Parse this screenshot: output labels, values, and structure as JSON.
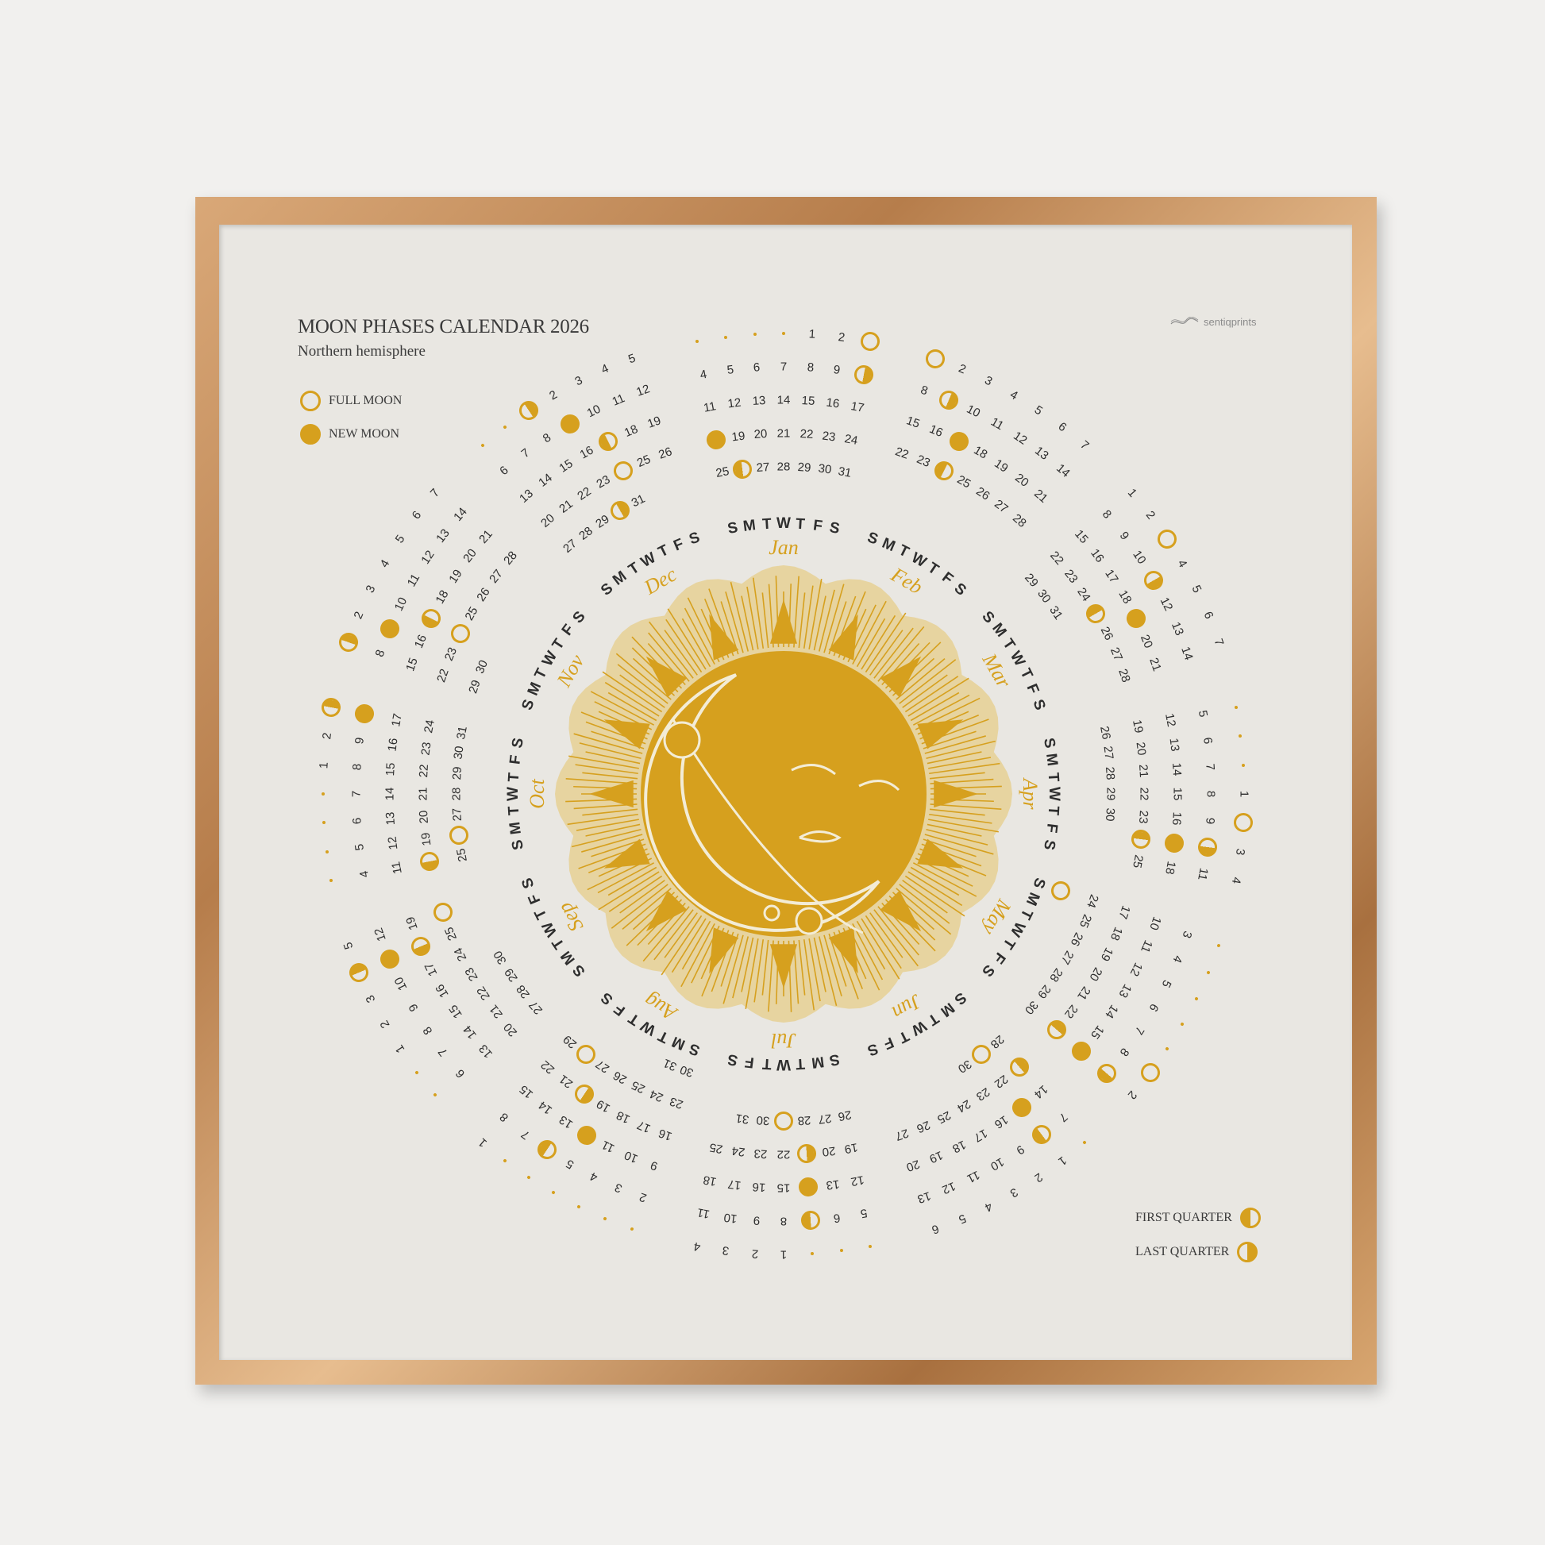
{
  "header": {
    "title": "MOON PHASES CALENDAR 2026",
    "subtitle": "Northern hemisphere"
  },
  "brand": {
    "name": "sentiqprints",
    "icon": "wave-logo-icon"
  },
  "legend": {
    "full_moon": "FULL MOON",
    "new_moon": "NEW MOON",
    "first_quarter": "FIRST QUARTER",
    "last_quarter": "LAST QUARTER"
  },
  "colors": {
    "gold": "#d6a01e",
    "ink": "#2e2e2e",
    "paper": "#e9e7e2",
    "frame": "#c99462",
    "wall": "#f1f0ee"
  },
  "calendar": {
    "year": 2026,
    "weekday_letters": [
      "S",
      "M",
      "T",
      "W",
      "T",
      "F",
      "S"
    ],
    "months": [
      {
        "name": "Jan",
        "phases": {
          "full": [
            3
          ],
          "new": [
            18
          ],
          "first_quarter": [
            26
          ],
          "last_quarter": [
            10
          ]
        }
      },
      {
        "name": "Feb",
        "phases": {
          "full": [
            1
          ],
          "new": [
            17
          ],
          "first_quarter": [
            24
          ],
          "last_quarter": [
            9
          ]
        }
      },
      {
        "name": "Mar",
        "phases": {
          "full": [
            3
          ],
          "new": [
            19
          ],
          "first_quarter": [
            25
          ],
          "last_quarter": [
            11
          ]
        }
      },
      {
        "name": "Apr",
        "phases": {
          "full": [
            2
          ],
          "new": [
            17
          ],
          "first_quarter": [
            24
          ],
          "last_quarter": [
            10
          ]
        }
      },
      {
        "name": "May",
        "phases": {
          "full": [
            1,
            31
          ],
          "new": [
            16
          ],
          "first_quarter": [
            23
          ],
          "last_quarter": [
            9
          ]
        }
      },
      {
        "name": "Jun",
        "phases": {
          "full": [
            29
          ],
          "new": [
            15
          ],
          "first_quarter": [
            21
          ],
          "last_quarter": [
            8
          ]
        }
      },
      {
        "name": "Jul",
        "phases": {
          "full": [
            29
          ],
          "new": [
            14
          ],
          "first_quarter": [
            21
          ],
          "last_quarter": [
            7
          ]
        }
      },
      {
        "name": "Aug",
        "phases": {
          "full": [
            28
          ],
          "new": [
            12
          ],
          "first_quarter": [
            20
          ],
          "last_quarter": [
            6
          ]
        }
      },
      {
        "name": "Sep",
        "phases": {
          "full": [
            26
          ],
          "new": [
            11
          ],
          "first_quarter": [
            18
          ],
          "last_quarter": [
            4
          ]
        }
      },
      {
        "name": "Oct",
        "phases": {
          "full": [
            26
          ],
          "new": [
            10
          ],
          "first_quarter": [
            18
          ],
          "last_quarter": [
            3
          ]
        }
      },
      {
        "name": "Nov",
        "phases": {
          "full": [
            24
          ],
          "new": [
            9
          ],
          "first_quarter": [
            17
          ],
          "last_quarter": [
            1
          ]
        }
      },
      {
        "name": "Dec",
        "phases": {
          "full": [
            24
          ],
          "new": [
            9
          ],
          "first_quarter": [
            17
          ],
          "last_quarter": [
            1,
            30
          ]
        }
      }
    ]
  }
}
